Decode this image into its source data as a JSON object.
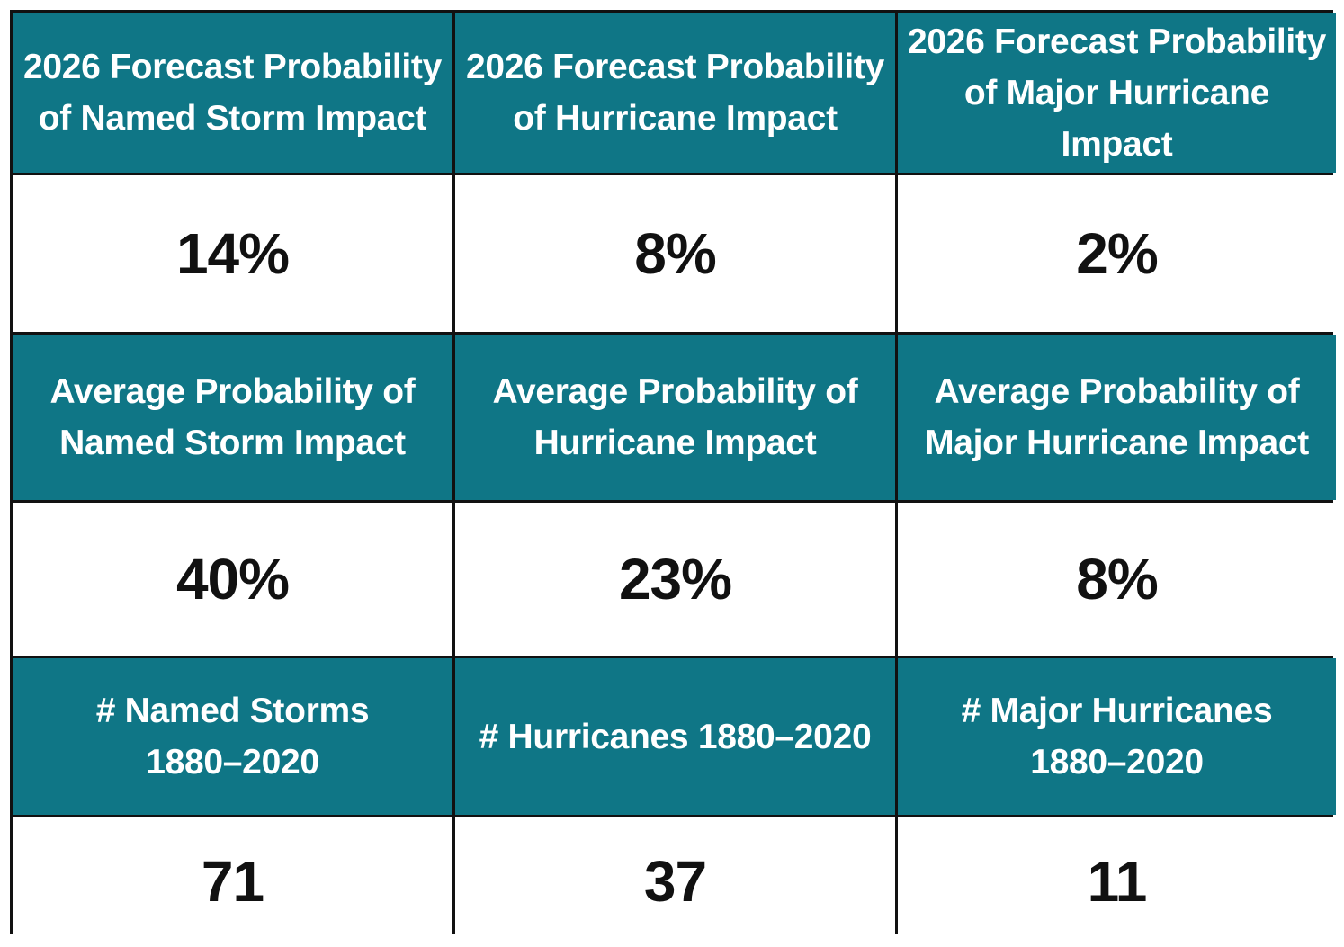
{
  "colors": {
    "header_bg": "#0f7686",
    "header_text": "#ffffff",
    "value_bg": "#ffffff",
    "value_text": "#111111",
    "border": "#111111"
  },
  "rows": [
    {
      "type": "header",
      "cells": [
        "2026 Forecast Probability\nof Named Storm Impact",
        "2026 Forecast Probability\nof Hurricane Impact",
        "2026 Forecast Probability\nof Major Hurricane\nImpact"
      ]
    },
    {
      "type": "value",
      "cells": [
        "14%",
        "8%",
        "2%"
      ]
    },
    {
      "type": "header",
      "cells": [
        "Average Probability of\nNamed Storm Impact",
        "Average Probability of\nHurricane Impact",
        "Average Probability of\nMajor Hurricane Impact"
      ]
    },
    {
      "type": "value",
      "cells": [
        "40%",
        "23%",
        "8%"
      ]
    },
    {
      "type": "header",
      "cells": [
        "# Named Storms\n1880–2020",
        "# Hurricanes 1880–2020",
        "# Major Hurricanes\n1880–2020"
      ]
    },
    {
      "type": "value",
      "cells": [
        "71",
        "37",
        "11"
      ]
    }
  ]
}
